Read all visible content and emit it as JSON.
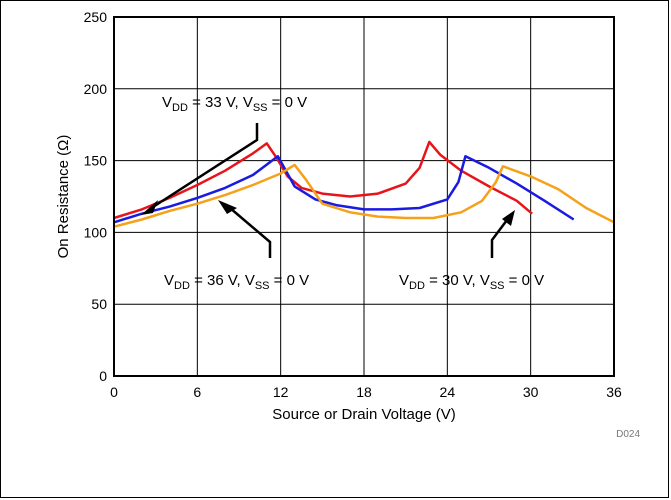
{
  "chart_data": {
    "type": "line",
    "title": "",
    "xlabel": "Source or Drain Voltage (V)",
    "ylabel": "On Resistance (Ω)",
    "xlim": [
      0,
      36
    ],
    "ylim": [
      0,
      250
    ],
    "xticks": [
      0,
      6,
      12,
      18,
      24,
      30,
      36
    ],
    "yticks": [
      0,
      50,
      100,
      150,
      200,
      250
    ],
    "grid": true,
    "figure_code": "D024",
    "series": [
      {
        "color": "#e8141b",
        "x": [
          0,
          2,
          4,
          6,
          8,
          10,
          11,
          11.7,
          12.5,
          13.5,
          15,
          17,
          19,
          21,
          22,
          22.7,
          23.5,
          25,
          27,
          29,
          30.1
        ],
        "y": [
          110,
          116,
          124,
          133,
          143,
          155,
          162,
          152,
          139,
          131,
          127,
          125,
          127,
          134,
          145,
          163,
          154,
          143,
          132,
          122,
          113
        ]
      },
      {
        "color": "#1a1ae0",
        "x": [
          0,
          2,
          4,
          6,
          8,
          10,
          11.8,
          13,
          14.5,
          16,
          18,
          20,
          22,
          24,
          24.8,
          25.3,
          27,
          29,
          31,
          33.1
        ],
        "y": [
          107,
          113,
          118,
          124,
          131,
          140,
          153,
          132,
          123,
          119,
          116,
          116,
          117,
          123,
          135,
          153,
          145,
          134,
          122,
          109
        ]
      },
      {
        "color": "#f5a11a",
        "x": [
          0,
          2,
          4,
          6,
          8,
          10,
          12,
          13,
          13.8,
          15,
          17,
          19,
          21,
          23,
          25,
          26.5,
          27.5,
          28,
          30,
          32,
          34,
          36
        ],
        "y": [
          104,
          109,
          115,
          120,
          126,
          133,
          141,
          147,
          137,
          120,
          114,
          111,
          110,
          110,
          114,
          122,
          135,
          146,
          139,
          130,
          117,
          107
        ]
      }
    ],
    "annotations": [
      {
        "main1": "V",
        "sub1": "DD",
        "main2": " = 33 V, V",
        "sub2": "SS",
        "main3": " = 0 V"
      },
      {
        "main1": "V",
        "sub1": "DD",
        "main2": " = 36 V, V",
        "sub2": "SS",
        "main3": " = 0 V"
      },
      {
        "main1": "V",
        "sub1": "DD",
        "main2": " = 30 V, V",
        "sub2": "SS",
        "main3": " = 0 V"
      }
    ]
  }
}
